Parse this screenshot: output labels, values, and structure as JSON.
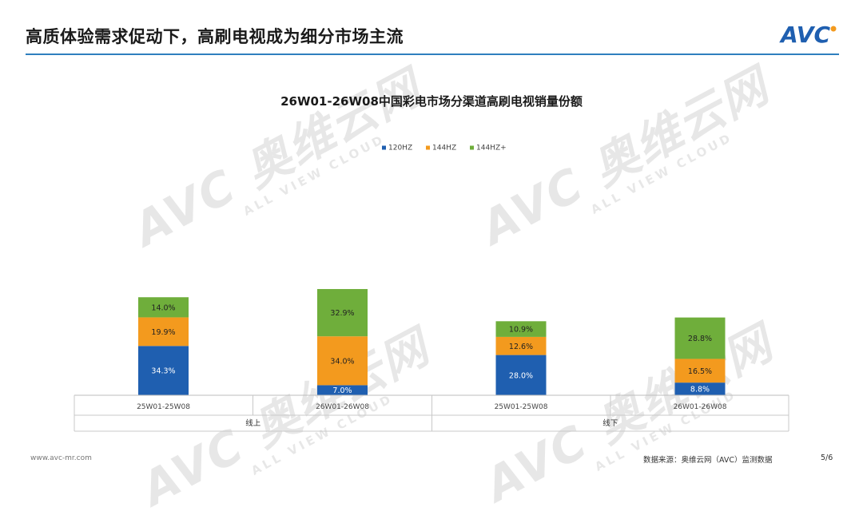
{
  "header": {
    "title": "高质体验需求促动下，高刷电视成为细分市场主流",
    "logo_text": "AVC"
  },
  "watermark": {
    "brand": "AVC 奥维云网",
    "tagline": "ALL VIEW CLOUD"
  },
  "colors": {
    "accent": "#2e7fbe",
    "series_120": "#1f5fb0",
    "series_144": "#f39a1e",
    "series_144plus": "#6fae3b",
    "logo_dot": "#f39a1e"
  },
  "chart_data": {
    "type": "bar",
    "stacked": true,
    "title": "26W01-26W08中国彩电市场分渠道高刷电视销量份额",
    "legend_position": "top-center",
    "grid": false,
    "ylim": [
      0,
      100
    ],
    "groups": [
      {
        "label": "线上",
        "categories": [
          "25W01-25W08",
          "26W01-26W08"
        ]
      },
      {
        "label": "线下",
        "categories": [
          "25W01-25W08",
          "26W01-26W08"
        ]
      }
    ],
    "categories": [
      "25W01-25W08",
      "26W01-26W08",
      "25W01-25W08",
      "26W01-26W08"
    ],
    "series": [
      {
        "name": "120HZ",
        "values": [
          34.3,
          7.0,
          28.0,
          8.8
        ],
        "labels": [
          "34.3%",
          "7.0%",
          "28.0%",
          "8.8%"
        ]
      },
      {
        "name": "144HZ",
        "values": [
          19.9,
          34.0,
          12.6,
          16.5
        ],
        "labels": [
          "19.9%",
          "34.0%",
          "12.6%",
          "16.5%"
        ]
      },
      {
        "name": "144HZ+",
        "values": [
          14.0,
          32.9,
          10.9,
          28.8
        ],
        "labels": [
          "14.0%",
          "32.9%",
          "10.9%",
          "28.8%"
        ]
      }
    ]
  },
  "footer": {
    "website": "www.avc-mr.com",
    "source": "数据来源：奥维云网（AVC）监测数据",
    "page": "5/6"
  }
}
